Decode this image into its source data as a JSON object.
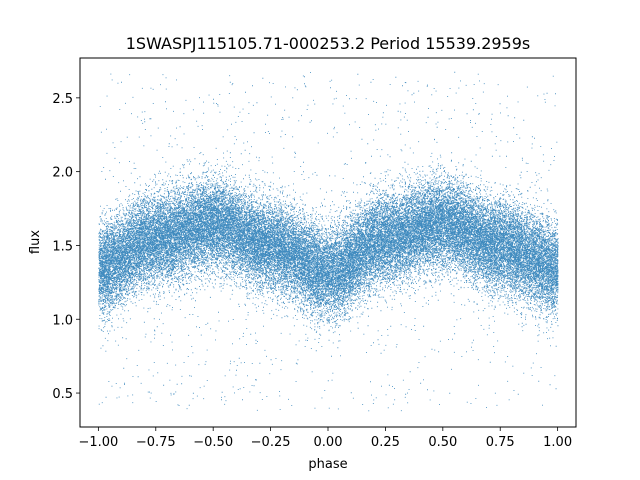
{
  "chart_data": {
    "type": "scatter",
    "title": "1SWASPJ115105.71-000253.2 Period 15539.2959s",
    "xlabel": "phase",
    "ylabel": "flux",
    "xlim": [
      -1.08,
      1.08
    ],
    "ylim": [
      0.27,
      2.77
    ],
    "x_ticks": [
      -1.0,
      -0.75,
      -0.5,
      -0.25,
      0.0,
      0.25,
      0.5,
      0.75,
      1.0
    ],
    "x_tick_labels": [
      "−1.00",
      "−0.75",
      "−0.50",
      "−0.25",
      "0.00",
      "0.25",
      "0.50",
      "0.75",
      "1.00"
    ],
    "y_ticks": [
      0.5,
      1.0,
      1.5,
      2.0,
      2.5
    ],
    "y_tick_labels": [
      "0.5",
      "1.0",
      "1.5",
      "2.0",
      "2.5"
    ],
    "grid": false,
    "marker_color": "#1f77b4",
    "series": [
      {
        "phase_range": [
          -1.0,
          1.0
        ],
        "mean_flux_curve": {
          "x": [
            -1.0,
            -0.75,
            -0.5,
            -0.25,
            0.0,
            0.25,
            0.5,
            0.75,
            1.0
          ],
          "y": [
            1.35,
            1.55,
            1.65,
            1.5,
            1.32,
            1.55,
            1.65,
            1.5,
            1.35
          ]
        },
        "flux_spread_sigma": 0.15,
        "outlier_flux_range": [
          0.38,
          2.68
        ],
        "approx_point_count": 50000
      }
    ]
  }
}
